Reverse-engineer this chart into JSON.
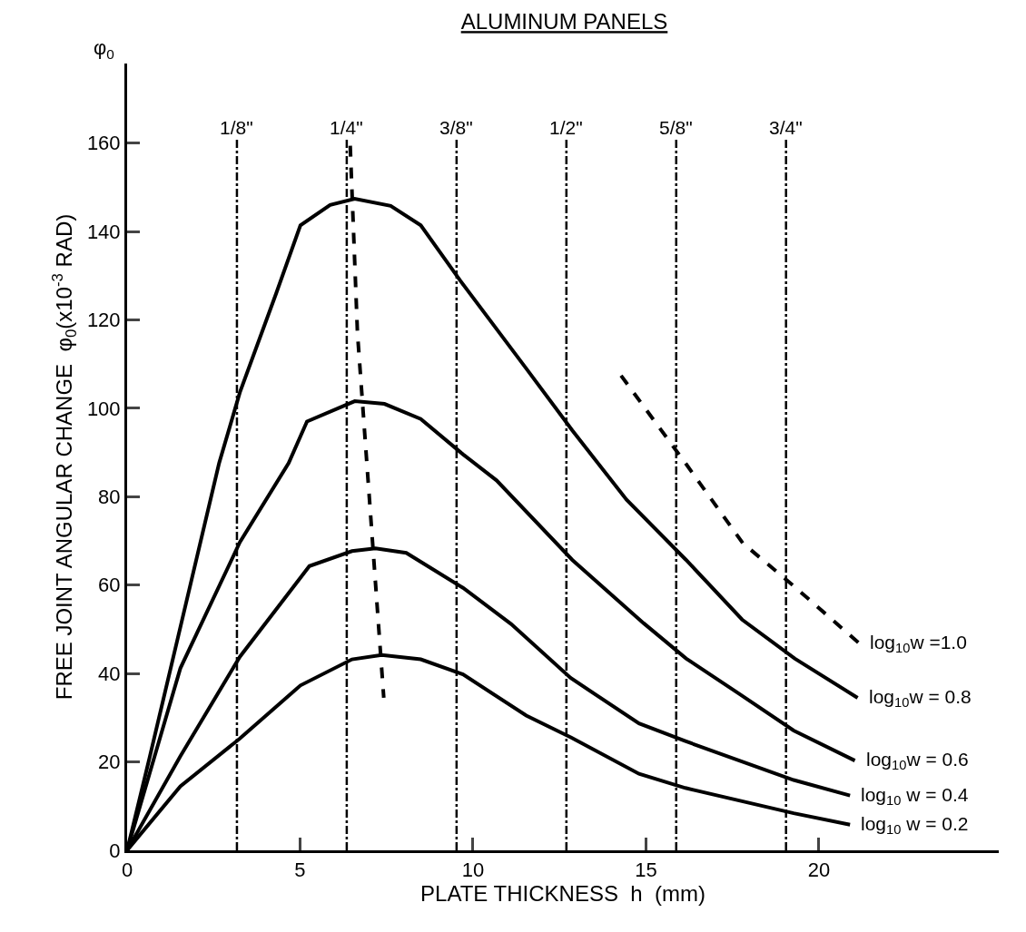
{
  "chart_data": {
    "type": "line",
    "title": "ALUMINUM PANELS",
    "xlabel": "PLATE THICKNESS  h  (mm)",
    "ylabel": "FREE JOINT ANGULAR CHANGE  φ$_{0}$(x10$^{-3}$ RAD)",
    "annotations": [
      "φ$_{0}$",
      {
        "text": "1/8\"",
        "x": 3.175,
        "y": 160
      },
      {
        "text": "1/4\"",
        "x": 6.35,
        "y": 160
      },
      {
        "text": "3/8\"",
        "x": 9.525,
        "y": 160
      },
      {
        "text": "1/2\"",
        "x": 12.7,
        "y": 160
      },
      {
        "text": "5/8\"",
        "x": 15.875,
        "y": 160
      },
      {
        "text": "3/4\"",
        "x": 19.05,
        "y": 160
      }
    ],
    "xlim": [
      0,
      25.2
    ],
    "xticks": [
      0,
      5,
      10,
      15,
      20
    ],
    "ylim": [
      0,
      178
    ],
    "yticks": [
      0,
      20,
      40,
      60,
      80,
      100,
      120,
      140,
      160
    ],
    "grid": false,
    "legend": false,
    "series": [
      {
        "name": "log$_{10}$w =1.0",
        "color": "#000000",
        "line_style": "dashed",
        "x": [
          14.28,
          16.16,
          17.8,
          19.3,
          21.17
        ],
        "values": [
          107.4,
          87.4,
          69.5,
          59.6,
          46.8
        ]
      },
      {
        "name": "log$_{10}$w = 0.8",
        "color": "#000000",
        "line_style": "solid",
        "x": [
          0,
          0.65,
          2.66,
          3.26,
          4.31,
          5.01,
          5.87,
          6.58,
          7.62,
          8.49,
          9.63,
          11.54,
          12.87,
          14.44,
          16.16,
          17.78,
          19.3,
          21.12
        ],
        "values": [
          0,
          21,
          87.6,
          103.6,
          126,
          141.4,
          146,
          147.4,
          145.8,
          141.4,
          128.9,
          109,
          95,
          79.3,
          65.7,
          52.2,
          43.4,
          34.5
        ]
      },
      {
        "name": "log$_{10}$w = 0.6",
        "color": "#000000",
        "line_style": "solid",
        "x": [
          0,
          1.54,
          3.26,
          4.67,
          5.2,
          6.58,
          7.44,
          8.49,
          9.71,
          10.68,
          12.87,
          14.93,
          16.16,
          17.68,
          19.27,
          21.04
        ],
        "values": [
          0,
          41.2,
          69.7,
          87.6,
          97,
          101.6,
          101,
          97.6,
          89.6,
          83.7,
          65.7,
          51.4,
          43.4,
          35.5,
          27.1,
          20.3
        ]
      },
      {
        "name": "log$_{10}$ w = 0.4",
        "color": "#000000",
        "line_style": "solid",
        "x": [
          0,
          1.54,
          3.26,
          5.27,
          6.5,
          7.18,
          8.07,
          9.71,
          11.1,
          12.82,
          14.8,
          16.14,
          19.27,
          20.9
        ],
        "values": [
          0,
          21.3,
          43.8,
          64.3,
          67.7,
          68.3,
          67.3,
          59.4,
          51.2,
          39,
          28.7,
          24.7,
          15.9,
          12.4
        ]
      },
      {
        "name": "log$_{10}$ w = 0.2",
        "color": "#000000",
        "line_style": "solid",
        "x": [
          0,
          1.54,
          3.26,
          5.01,
          6.5,
          7.36,
          8.49,
          9.71,
          11.54,
          12.84,
          14.8,
          16.14,
          19.27,
          20.9
        ],
        "values": [
          0,
          14.5,
          25.3,
          37.3,
          43.2,
          44.2,
          43.2,
          39.8,
          30.5,
          25.5,
          17.3,
          14.1,
          8.4,
          5.8
        ]
      },
      {
        "color": "#000000",
        "line_style": "dashed",
        "x": [
          6.45,
          6.66,
          7.42
        ],
        "values": [
          159.4,
          117,
          34.5
        ]
      }
    ],
    "ref_lines": [
      {
        "axis": "x",
        "value": 3.175,
        "color": "#000000",
        "line_style": "dashdot"
      },
      {
        "axis": "x",
        "value": 6.35,
        "color": "#000000",
        "line_style": "dashdot"
      },
      {
        "axis": "x",
        "value": 9.525,
        "color": "#000000",
        "line_style": "dashdot"
      },
      {
        "axis": "x",
        "value": 12.7,
        "color": "#000000",
        "line_style": "dashdot"
      },
      {
        "axis": "x",
        "value": 15.875,
        "color": "#000000",
        "line_style": "dashdot"
      },
      {
        "axis": "x",
        "value": 19.05,
        "color": "#000000",
        "line_style": "dashdot"
      }
    ]
  }
}
